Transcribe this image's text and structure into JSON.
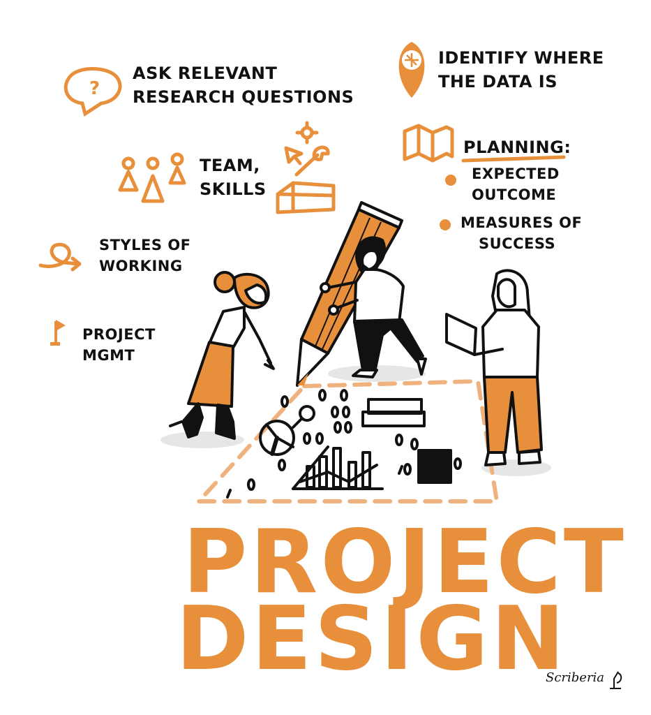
{
  "colors": {
    "accent": "#E88F3C",
    "ink": "#111111",
    "shadow": "#E6E6E6"
  },
  "items": {
    "research": {
      "line1": "ASK RELEVANT",
      "line2": "RESEARCH QUESTIONS",
      "icon": "question-bubble-icon"
    },
    "data": {
      "line1": "IDENTIFY WHERE",
      "line2": "THE DATA IS",
      "icon": "map-pin-icon"
    },
    "team": {
      "line1": "TEAM,",
      "line2": "SKILLS",
      "icon": "people-icon"
    },
    "planning": {
      "title": "PLANNING:",
      "bullet1_line1": "EXPECTED",
      "bullet1_line2": "OUTCOME",
      "bullet2_line1": "MEASURES OF",
      "bullet2_line2": "SUCCESS",
      "icon": "open-map-icon"
    },
    "styles": {
      "line1": "STYLES OF",
      "line2": "WORKING",
      "icon": "curly-arrow-icon"
    },
    "mgmt": {
      "line1": "PROJECT",
      "line2": "MGMT",
      "icon": "flag-icon"
    }
  },
  "headline": {
    "line1": "PROJECT",
    "line2": "DESIGN"
  },
  "signature": "Scriberia"
}
